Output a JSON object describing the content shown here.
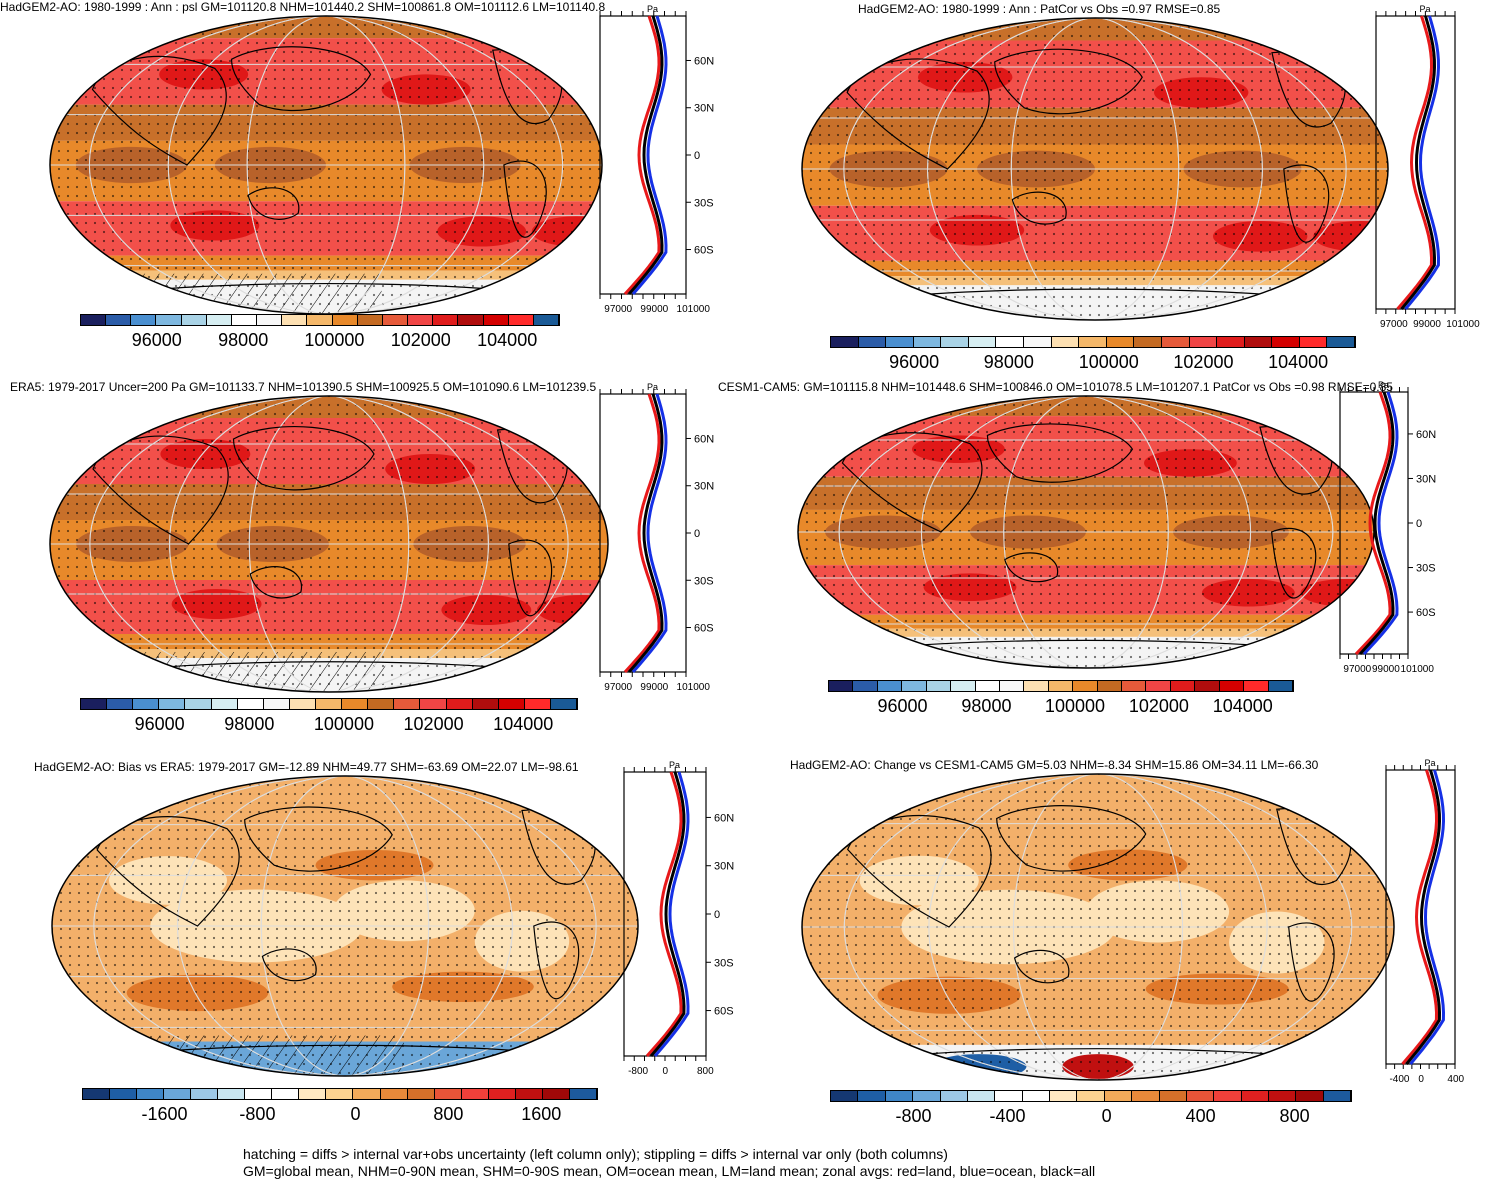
{
  "panels": [
    {
      "id": "p1",
      "title": "HadGEM2-AO: 1980-1999 : Ann : psl GM=101120.8 NHM=101440.2 SHM=100861.8 OM=101112.6 LM=101140.8",
      "kind": "abs",
      "hatch": true,
      "zonal": {
        "ticks": [
          "97000",
          "99000",
          "101000"
        ],
        "lat": [
          "60N",
          "30N",
          "0",
          "30S",
          "60S"
        ],
        "unit": "Pa"
      },
      "cbar": {
        "labels": [
          "96000",
          "98000",
          "100000",
          "102000",
          "104000"
        ]
      }
    },
    {
      "id": "p2",
      "title": "HadGEM2-AO: 1980-1999 : Ann : PatCor vs Obs =0.97 RMSE=0.85",
      "kind": "abs",
      "hatch": false,
      "zonal": {
        "ticks": [
          "97000",
          "99000",
          "101000"
        ],
        "lat": [],
        "unit": "Pa"
      },
      "cbar": {
        "labels": [
          "96000",
          "98000",
          "100000",
          "102000",
          "104000"
        ]
      }
    },
    {
      "id": "p3",
      "title": "ERA5: 1979-2017 Uncer=200 Pa GM=101133.7 NHM=101390.5 SHM=100925.5 OM=101090.6 LM=101239.5",
      "kind": "abs",
      "hatch": true,
      "zonal": {
        "ticks": [
          "97000",
          "99000",
          "101000"
        ],
        "lat": [
          "60N",
          "30N",
          "0",
          "30S",
          "60S"
        ],
        "unit": "Pa"
      },
      "cbar": {
        "labels": [
          "96000",
          "98000",
          "100000",
          "102000",
          "104000"
        ]
      }
    },
    {
      "id": "p4",
      "title": "CESM1-CAM5: GM=101115.8 NHM=101448.6 SHM=100846.0 OM=101078.5 LM=101207.1 PatCor vs Obs =0.98 RMSE=0.85",
      "kind": "abs",
      "hatch": false,
      "zonal": {
        "ticks": [
          "97000",
          "99000",
          "101000"
        ],
        "lat": [
          "60N",
          "30N",
          "0",
          "30S",
          "60S"
        ],
        "unit": "Pa"
      },
      "cbar": {
        "labels": [
          "96000",
          "98000",
          "100000",
          "102000",
          "104000"
        ]
      }
    },
    {
      "id": "p5",
      "title": "HadGEM2-AO: Bias vs ERA5: 1979-2017 GM=-12.89 NHM=49.77 SHM=-63.69 OM=22.07 LM=-98.61",
      "kind": "bias",
      "hatch": true,
      "zonal": {
        "ticks": [
          "-800",
          "0",
          "800"
        ],
        "lat": [
          "60N",
          "30N",
          "0",
          "30S",
          "60S"
        ],
        "unit": "Pa"
      },
      "cbar": {
        "labels": [
          "-1600",
          "-800",
          "0",
          "800",
          "1600"
        ]
      }
    },
    {
      "id": "p6",
      "title": "HadGEM2-AO: Change vs CESM1-CAM5 GM=5.03 NHM=-8.34 SHM=15.86 OM=34.11 LM=-66.30",
      "kind": "change",
      "hatch": false,
      "zonal": {
        "ticks": [
          "-400",
          "0",
          "400"
        ],
        "lat": [],
        "unit": "Pa"
      },
      "cbar": {
        "labels": [
          "-800",
          "-400",
          "0",
          "400",
          "800"
        ]
      }
    }
  ],
  "colors": {
    "abs": [
      "#1a1f5e",
      "#2b5ca8",
      "#4a8fd0",
      "#7eb8e0",
      "#a9d3e6",
      "#d6eef2",
      "#ffffff",
      "#f7f7f7",
      "#fde0b2",
      "#f5b86a",
      "#e8892a",
      "#c46a22",
      "#e65a3a",
      "#f04545",
      "#e01c1c",
      "#b00d0d",
      "#d40000",
      "#ff2a2a",
      "#1a5a96"
    ],
    "bias": [
      "#153872",
      "#1e5ea5",
      "#3f86c7",
      "#6aa6d8",
      "#9cc8e6",
      "#c9e6f0",
      "#ffffff",
      "#ffffff",
      "#ffe9c2",
      "#fcd391",
      "#f3ab5a",
      "#e8893a",
      "#d6702a",
      "#e85438",
      "#f0403a",
      "#e02020",
      "#c01010",
      "#a00808",
      "#1d5a9e"
    ],
    "zonal": {
      "land": "#e8191a",
      "ocean": "#1530e6",
      "all": "#000000"
    }
  },
  "footer": {
    "line1": "hatching = diffs > internal var+obs uncertainty (left column only); stippling = diffs > internal var only (both columns)",
    "line2": "GM=global mean, NHM=0-90N mean, SHM=0-90S mean, OM=ocean mean, LM=land mean; zonal avgs: red=land, blue=ocean, black=all"
  }
}
